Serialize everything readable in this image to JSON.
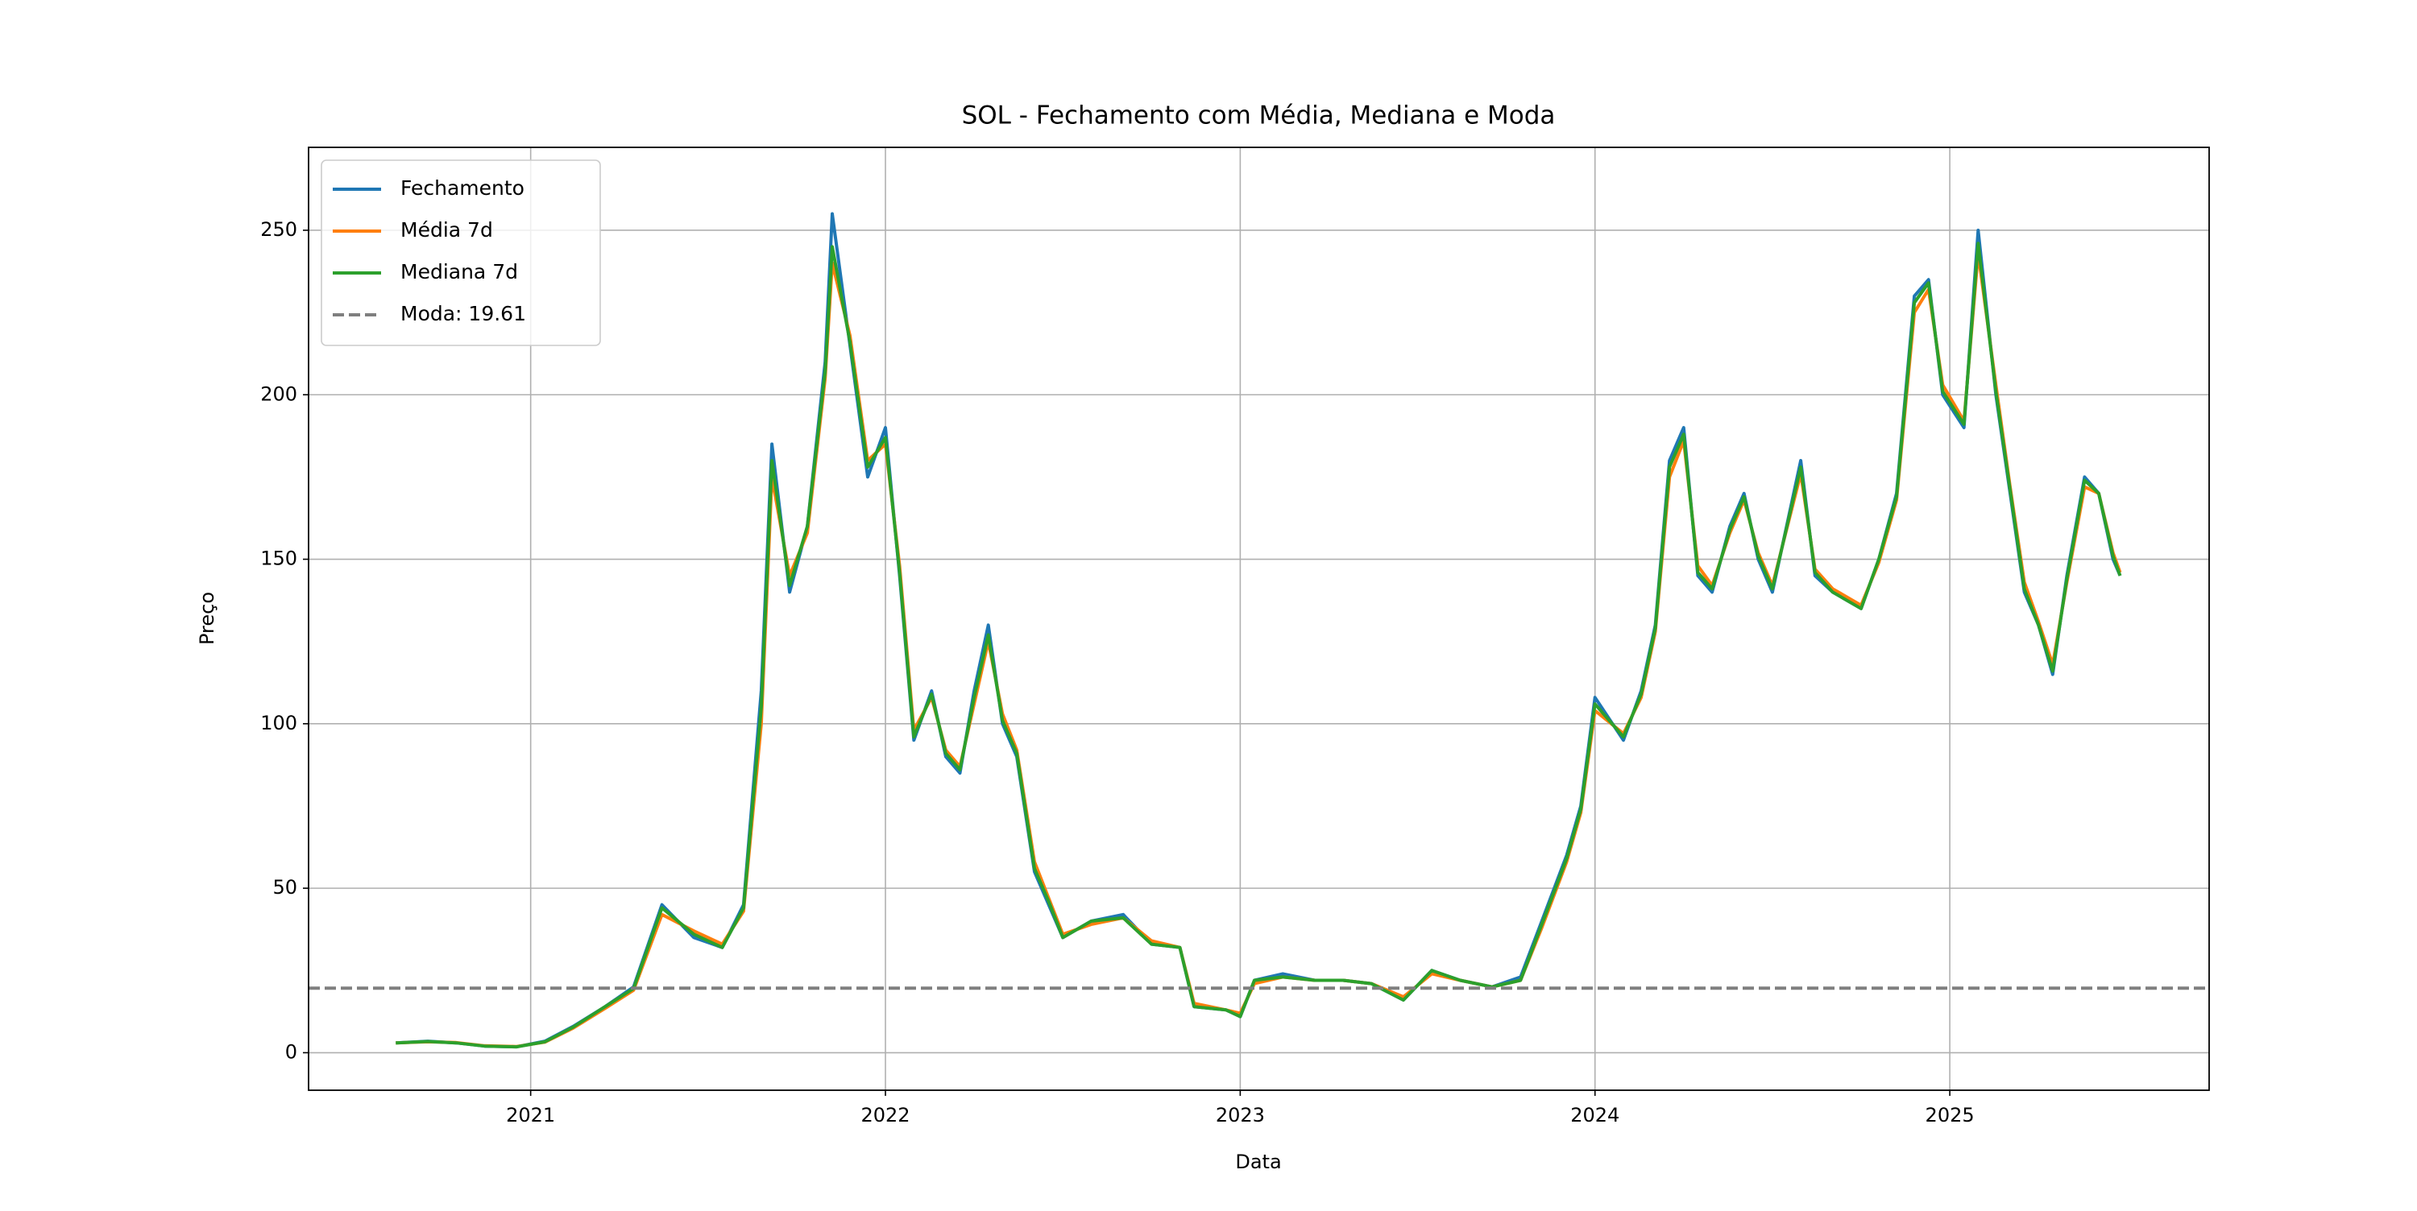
{
  "chart_data": {
    "type": "line",
    "title": "SOL - Fechamento com Média, Mediana e Moda",
    "xlabel": "Data",
    "ylabel": "Preço",
    "x": [
      2020.62,
      2020.71,
      2020.79,
      2020.87,
      2020.96,
      2021.04,
      2021.12,
      2021.21,
      2021.29,
      2021.37,
      2021.46,
      2021.54,
      2021.6,
      2021.65,
      2021.68,
      2021.73,
      2021.78,
      2021.83,
      2021.85,
      2021.9,
      2021.95,
      2022.0,
      2022.04,
      2022.08,
      2022.13,
      2022.17,
      2022.21,
      2022.25,
      2022.29,
      2022.33,
      2022.37,
      2022.42,
      2022.46,
      2022.5,
      2022.58,
      2022.67,
      2022.75,
      2022.83,
      2022.87,
      2022.96,
      2023.0,
      2023.04,
      2023.12,
      2023.21,
      2023.29,
      2023.37,
      2023.46,
      2023.54,
      2023.62,
      2023.71,
      2023.79,
      2023.85,
      2023.92,
      2023.96,
      2024.0,
      2024.08,
      2024.13,
      2024.17,
      2024.21,
      2024.25,
      2024.29,
      2024.33,
      2024.38,
      2024.42,
      2024.46,
      2024.5,
      2024.58,
      2024.62,
      2024.67,
      2024.75,
      2024.8,
      2024.85,
      2024.9,
      2024.94,
      2024.98,
      2025.04,
      2025.08,
      2025.13,
      2025.17,
      2025.21,
      2025.25,
      2025.29,
      2025.33,
      2025.38,
      2025.42,
      2025.46,
      2025.48
    ],
    "series": [
      {
        "name": "Fechamento",
        "color": "#1f77b4",
        "values": [
          3,
          3.5,
          3,
          2,
          1.8,
          3.5,
          8,
          14,
          20,
          45,
          35,
          32,
          45,
          110,
          185,
          140,
          160,
          210,
          255,
          215,
          175,
          190,
          145,
          95,
          110,
          90,
          85,
          110,
          130,
          100,
          90,
          55,
          45,
          35,
          40,
          42,
          33,
          32,
          14,
          13,
          11,
          22,
          24,
          22,
          22,
          21,
          16,
          25,
          22,
          20,
          23,
          40,
          60,
          75,
          108,
          95,
          110,
          130,
          180,
          190,
          145,
          140,
          160,
          170,
          150,
          140,
          180,
          145,
          140,
          135,
          150,
          170,
          230,
          235,
          200,
          190,
          250,
          200,
          170,
          140,
          130,
          115,
          145,
          175,
          170,
          150,
          145
        ]
      },
      {
        "name": "Média 7d",
        "color": "#ff7f0e",
        "values": [
          3,
          3.3,
          3.1,
          2.1,
          1.9,
          3.2,
          7.5,
          13.5,
          19,
          42,
          37,
          33,
          43,
          100,
          175,
          145,
          158,
          205,
          240,
          218,
          180,
          185,
          148,
          98,
          108,
          92,
          87,
          106,
          125,
          103,
          92,
          58,
          47,
          36,
          39,
          41,
          34,
          32,
          15,
          13,
          12,
          21,
          23,
          22,
          22,
          21,
          17,
          24,
          22,
          20,
          22,
          38,
          58,
          73,
          104,
          97,
          108,
          128,
          175,
          186,
          148,
          142,
          158,
          168,
          152,
          142,
          176,
          147,
          141,
          136,
          149,
          168,
          225,
          232,
          203,
          192,
          243,
          203,
          172,
          143,
          131,
          118,
          143,
          172,
          170,
          152,
          146
        ]
      },
      {
        "name": "Mediana 7d",
        "color": "#2ca02c",
        "values": [
          3,
          3.4,
          3,
          2,
          1.8,
          3.3,
          7.8,
          14,
          19.5,
          44,
          36,
          32,
          44,
          105,
          180,
          142,
          160,
          207,
          245,
          216,
          178,
          187,
          146,
          96,
          109,
          91,
          86,
          108,
          127,
          101,
          91,
          56,
          46,
          35,
          40,
          41,
          33,
          32,
          14,
          13,
          11,
          22,
          23,
          22,
          22,
          21,
          16,
          25,
          22,
          20,
          22,
          39,
          59,
          74,
          106,
          96,
          109,
          129,
          178,
          188,
          146,
          141,
          159,
          169,
          151,
          141,
          178,
          146,
          140,
          135,
          150,
          169,
          228,
          234,
          201,
          191,
          246,
          201,
          171,
          141,
          130,
          116,
          144,
          174,
          170,
          151,
          145
        ]
      }
    ],
    "hline": {
      "name": "Moda: 19.61",
      "value": 19.61,
      "color": "#7f7f7f",
      "dashed": true
    },
    "xlim": [
      2020.374,
      2025.731
    ],
    "xticks": [
      2021,
      2022,
      2023,
      2024,
      2025
    ],
    "ylim": [
      -11.4,
      275.2
    ],
    "yticks": [
      0,
      50,
      100,
      150,
      200,
      250
    ],
    "grid": true,
    "legend": "upper left"
  }
}
